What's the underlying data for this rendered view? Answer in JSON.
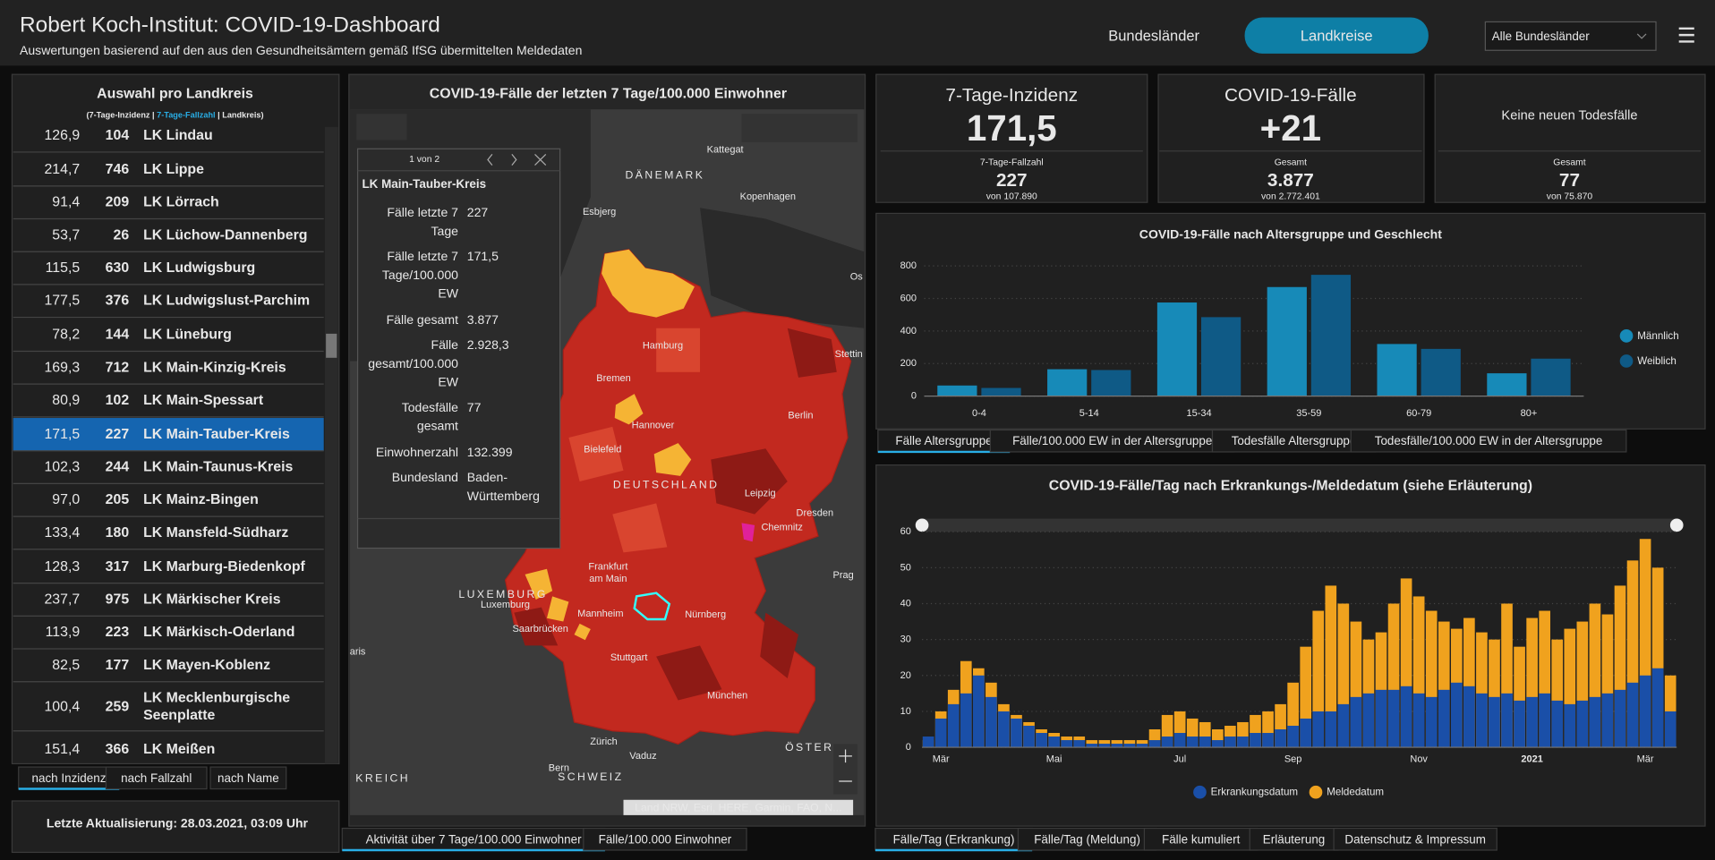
{
  "header": {
    "title": "Robert Koch-Institut: COVID-19-Dashboard",
    "subtitle": "Auswertungen basierend auf den aus den Gesundheitsämtern gemäß IfSG übermittelten Meldedaten",
    "nav": [
      "Bundesländer",
      "Landkreise"
    ],
    "dropdown": "Alle Bundesländer"
  },
  "sidebar": {
    "title": "Auswahl pro Landkreis",
    "legend": [
      "(7-Tage-Inzidenz | ",
      "7-Tage-Fallzahl",
      " | Landkreis)"
    ],
    "selected": 9,
    "rows": [
      [
        "126,9",
        104,
        "LK Lindau"
      ],
      [
        "214,7",
        746,
        "LK Lippe"
      ],
      [
        "91,4",
        209,
        "LK Lörrach"
      ],
      [
        "53,7",
        26,
        "LK Lüchow-Dannenberg"
      ],
      [
        "115,5",
        630,
        "LK Ludwigsburg"
      ],
      [
        "177,5",
        376,
        "LK Ludwigslust-Parchim"
      ],
      [
        "78,2",
        144,
        "LK Lüneburg"
      ],
      [
        "169,3",
        712,
        "LK Main-Kinzig-Kreis"
      ],
      [
        "80,9",
        102,
        "LK Main-Spessart"
      ],
      [
        "171,5",
        227,
        "LK Main-Tauber-Kreis"
      ],
      [
        "102,3",
        244,
        "LK Main-Taunus-Kreis"
      ],
      [
        "97,0",
        205,
        "LK Mainz-Bingen"
      ],
      [
        "133,4",
        180,
        "LK Mansfeld-Südharz"
      ],
      [
        "128,3",
        317,
        "LK Marburg-Biedenkopf"
      ],
      [
        "237,7",
        975,
        "LK Märkischer Kreis"
      ],
      [
        "113,9",
        223,
        "LK Märkisch-Oderland"
      ],
      [
        "82,5",
        177,
        "LK Mayen-Koblenz"
      ],
      [
        "100,4",
        259,
        [
          "LK Mecklenburgische",
          "Seenplatte"
        ]
      ],
      [
        "151,4",
        366,
        "LK Meißen"
      ]
    ],
    "sort_buttons": [
      "nach Inzidenz",
      "nach Fallzahl",
      "nach Name"
    ],
    "last_update": "Letzte Aktualisierung: 28.03.2021, 03:09 Uhr"
  },
  "map": {
    "title": "COVID-19-Fälle der letzten 7 Tage/100.000 Einwohner",
    "labels": [
      "DÄNEMARK",
      "Kattegat",
      "Esbjerg",
      "Kopenhagen",
      "Hamburg",
      "Stettin",
      "Bremen",
      "Hannover",
      "Berlin",
      "Bielefeld",
      "DEUTSCHLAND",
      "Leipzig",
      "Dresden",
      "Chemnitz",
      "Prag",
      "Frankfurt",
      "am Main",
      "LUXEMBURG",
      "Luxemburg",
      "Mannheim",
      "Saarbrücken",
      "Nürnberg",
      "Stuttgart",
      "München",
      "Zürich",
      "Vaduz",
      "Bern",
      "SCHWEIZ",
      "ÖSTER",
      "KREICH",
      "aris",
      "Os"
    ],
    "popup": {
      "pager": "1 von 2",
      "title": "LK Main-Tauber-Kreis",
      "fields": [
        [
          [
            "Fälle letzte 7",
            "Tage"
          ],
          [
            "227"
          ]
        ],
        [
          [
            "Fälle letzte 7",
            "Tage/100.000",
            "EW"
          ],
          [
            "171,5"
          ]
        ],
        [
          [
            "Fälle gesamt"
          ],
          [
            "3.877"
          ]
        ],
        [
          [
            "Fälle",
            "gesamt/100.000",
            "EW"
          ],
          [
            "2.928,3"
          ]
        ],
        [
          [
            "Todesfälle",
            "gesamt"
          ],
          [
            "77"
          ]
        ],
        [
          [
            "Einwohnerzahl"
          ],
          [
            "132.399"
          ]
        ],
        [
          [
            "Bundesland"
          ],
          [
            "Baden-",
            "Württemberg"
          ]
        ]
      ]
    },
    "attribution": "Land NRW, Esri, HERE, Garmin, FAO, N...",
    "tabs": [
      "Aktivität über 7 Tage/100.000 Einwohner",
      "Fälle/100.000 Einwohner"
    ]
  },
  "kpis": [
    {
      "title": "7-Tage-Inzidenz",
      "value": "171,5",
      "sub_label": "7-Tage-Fallzahl",
      "sub_value": "227",
      "sub_note": "von 107.890"
    },
    {
      "title": "COVID-19-Fälle",
      "value": "+21",
      "sub_label": "Gesamt",
      "sub_value": "3.877",
      "sub_note": "von 2.772.401"
    },
    {
      "title": "Keine neuen Todesfälle",
      "sub_label": "Gesamt",
      "sub_value": "77",
      "sub_note": "von 75.870"
    }
  ],
  "chart_data": [
    {
      "type": "bar",
      "barmode": "group",
      "title": "COVID-19-Fälle nach Altersgruppe und Geschlecht",
      "categories": [
        "0-4",
        "5-14",
        "15-34",
        "35-59",
        "60-79",
        "80+"
      ],
      "series": [
        {
          "name": "Männlich",
          "color": "#178ab8",
          "values": [
            65,
            165,
            575,
            670,
            320,
            140
          ]
        },
        {
          "name": "Weiblich",
          "color": "#0f5a86",
          "values": [
            50,
            160,
            485,
            745,
            290,
            230
          ]
        }
      ],
      "ylim": [
        0,
        800
      ],
      "yticks": [
        0,
        200,
        400,
        600,
        800
      ],
      "grid": true,
      "legend": "right",
      "tabs": [
        "Fälle Altersgruppe",
        "Fälle/100.000 EW in der Altersgruppe",
        "Todesfälle Altersgruppe",
        "Todesfälle/100.000 EW in der Altersgruppe"
      ]
    },
    {
      "type": "bar",
      "barmode": "overlay",
      "title": "COVID-19-Fälle/Tag nach Erkrankungs-/Meldedatum (siehe Erläuterung)",
      "categories": [
        null,
        "Mär",
        null,
        null,
        null,
        null,
        null,
        null,
        null,
        null,
        "Mai",
        null,
        null,
        null,
        null,
        null,
        null,
        null,
        null,
        null,
        "Jul",
        null,
        null,
        null,
        null,
        null,
        null,
        null,
        null,
        "Sep",
        null,
        null,
        null,
        null,
        null,
        null,
        null,
        null,
        null,
        "Nov",
        null,
        null,
        null,
        null,
        null,
        null,
        null,
        null,
        "2021",
        null,
        null,
        null,
        null,
        null,
        null,
        null,
        null,
        "Mär",
        null,
        null
      ],
      "series": [
        {
          "name": "Meldedatum",
          "color": "#f0a21e",
          "values": [
            2,
            10,
            16,
            24,
            22,
            18,
            12,
            9,
            7,
            5,
            4,
            3,
            3,
            2,
            2,
            2,
            2,
            2,
            5,
            9,
            10,
            8,
            7,
            5,
            6,
            7,
            9,
            10,
            12,
            18,
            28,
            38,
            45,
            40,
            35,
            30,
            32,
            40,
            47,
            42,
            38,
            35,
            33,
            36,
            32,
            30,
            40,
            28,
            36,
            38,
            30,
            33,
            35,
            40,
            37,
            45,
            52,
            58,
            50,
            20
          ]
        },
        {
          "name": "Erkrankungsdatum",
          "color": "#1a4fa8",
          "values": [
            3,
            8,
            12,
            15,
            20,
            14,
            10,
            8,
            6,
            4,
            3,
            2,
            2,
            1,
            1,
            1,
            1,
            1,
            2,
            3,
            4,
            3,
            3,
            2,
            3,
            3,
            4,
            4,
            5,
            6,
            8,
            10,
            10,
            12,
            14,
            15,
            16,
            16,
            17,
            15,
            14,
            16,
            18,
            17,
            15,
            14,
            15,
            13,
            14,
            15,
            13,
            12,
            13,
            14,
            15,
            16,
            18,
            20,
            22,
            10
          ]
        }
      ],
      "ylim": [
        0,
        60
      ],
      "yticks": [
        0,
        10,
        20,
        30,
        40,
        50,
        60
      ],
      "grid": true,
      "legend": "bottom",
      "tabs": [
        "Fälle/Tag (Erkrankung)",
        "Fälle/Tag (Meldung)",
        "Fälle kumuliert",
        "Erläuterung",
        "Datenschutz & Impressum"
      ]
    }
  ]
}
